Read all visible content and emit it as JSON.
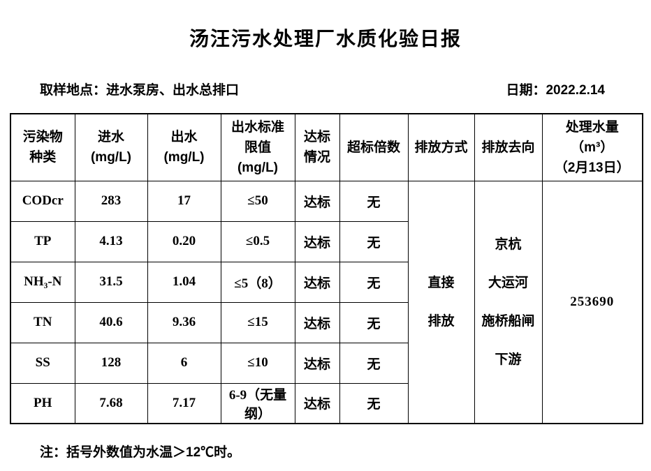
{
  "page": {
    "title": "汤汪污水处理厂水质化验日报",
    "sampling_location": "取样地点：进水泵房、出水总排口",
    "date": "日期：2022.2.14",
    "note": "注：括号外数值为水温＞12℃时。"
  },
  "table": {
    "headers": {
      "pollutant": [
        "污染物",
        "种类"
      ],
      "inflow": [
        "进水",
        "(mg/L)"
      ],
      "outflow": [
        "出水",
        "(mg/L)"
      ],
      "limit": [
        "出水标准",
        "限值",
        "(mg/L)"
      ],
      "status": [
        "达标",
        "情况"
      ],
      "exceed": "超标倍数",
      "discharge_mode": "排放方式",
      "discharge_destination": "排放去向",
      "treated_volume": [
        "处理水量",
        "（m³）",
        "（2月13日）"
      ]
    },
    "rows": [
      {
        "pollutant": "CODcr",
        "inflow": "283",
        "outflow": "17",
        "limit": "≤50",
        "status": "达标",
        "exceed": "无"
      },
      {
        "pollutant": "TP",
        "inflow": "4.13",
        "outflow": "0.20",
        "limit": "≤0.5",
        "status": "达标",
        "exceed": "无"
      },
      {
        "pollutant": "NH₃-N",
        "inflow": "31.5",
        "outflow": "1.04",
        "limit": "≤5（8）",
        "status": "达标",
        "exceed": "无"
      },
      {
        "pollutant": "TN",
        "inflow": "40.6",
        "outflow": "9.36",
        "limit": "≤15",
        "status": "达标",
        "exceed": "无"
      },
      {
        "pollutant": "SS",
        "inflow": "128",
        "outflow": "6",
        "limit": "≤10",
        "status": "达标",
        "exceed": "无"
      },
      {
        "pollutant": "PH",
        "inflow": "7.68",
        "outflow": "7.17",
        "limit": "6-9（无量纲）",
        "status": "达标",
        "exceed": "无"
      }
    ],
    "merged": {
      "discharge_mode": [
        "直接",
        "排放"
      ],
      "discharge_destination": [
        "京杭",
        "大运河",
        "施桥船闸",
        "下游"
      ],
      "treated_volume": "253690"
    }
  }
}
